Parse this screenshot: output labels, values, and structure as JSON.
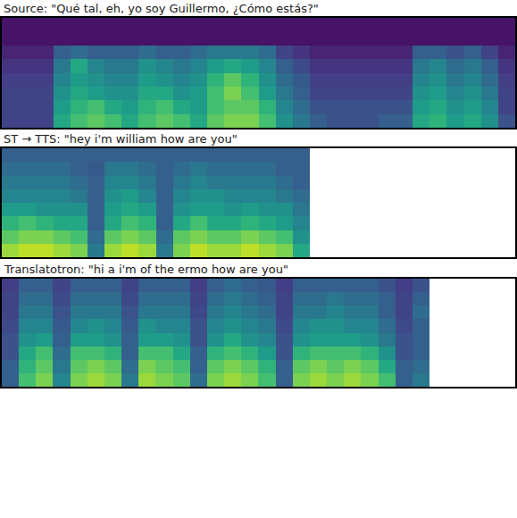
{
  "chart_data": [
    {
      "type": "heatmap",
      "title": "Source: \"Qué tal, eh, yo soy Guillermo, ¿Cómo estás?\"",
      "color": "viridis",
      "tick_labels": false,
      "xlim": [
        0,
        30
      ],
      "ylim": [
        0,
        8
      ],
      "zlim": [
        0,
        1
      ],
      "z": [
        [
          0.2,
          0.2,
          0.2,
          0.6,
          0.7,
          0.75,
          0.7,
          0.6,
          0.7,
          0.75,
          0.7,
          0.6,
          0.75,
          0.8,
          0.8,
          0.7,
          0.5,
          0.4,
          0.3,
          0.25,
          0.25,
          0.25,
          0.3,
          0.3,
          0.6,
          0.65,
          0.55,
          0.6,
          0.5,
          0.25
        ],
        [
          0.2,
          0.2,
          0.2,
          0.55,
          0.65,
          0.7,
          0.6,
          0.55,
          0.65,
          0.7,
          0.6,
          0.55,
          0.7,
          0.75,
          0.75,
          0.65,
          0.45,
          0.35,
          0.25,
          0.25,
          0.25,
          0.25,
          0.25,
          0.25,
          0.55,
          0.6,
          0.5,
          0.55,
          0.45,
          0.2
        ],
        [
          0.2,
          0.2,
          0.2,
          0.5,
          0.6,
          0.55,
          0.5,
          0.5,
          0.6,
          0.6,
          0.5,
          0.55,
          0.7,
          0.8,
          0.7,
          0.55,
          0.4,
          0.3,
          0.2,
          0.2,
          0.2,
          0.2,
          0.2,
          0.2,
          0.5,
          0.55,
          0.45,
          0.5,
          0.4,
          0.2
        ],
        [
          0.18,
          0.18,
          0.18,
          0.45,
          0.55,
          0.5,
          0.45,
          0.45,
          0.55,
          0.5,
          0.45,
          0.5,
          0.65,
          0.75,
          0.65,
          0.5,
          0.35,
          0.28,
          0.18,
          0.18,
          0.18,
          0.18,
          0.18,
          0.18,
          0.45,
          0.5,
          0.4,
          0.45,
          0.35,
          0.18
        ],
        [
          0.15,
          0.15,
          0.15,
          0.4,
          0.6,
          0.45,
          0.4,
          0.4,
          0.5,
          0.45,
          0.4,
          0.45,
          0.55,
          0.6,
          0.55,
          0.45,
          0.3,
          0.22,
          0.15,
          0.15,
          0.15,
          0.15,
          0.15,
          0.15,
          0.4,
          0.45,
          0.35,
          0.4,
          0.3,
          0.15
        ],
        [
          0.1,
          0.1,
          0.1,
          0.3,
          0.35,
          0.3,
          0.3,
          0.3,
          0.35,
          0.3,
          0.3,
          0.35,
          0.4,
          0.4,
          0.4,
          0.35,
          0.2,
          0.15,
          0.1,
          0.1,
          0.1,
          0.1,
          0.1,
          0.1,
          0.3,
          0.3,
          0.25,
          0.3,
          0.2,
          0.1
        ],
        [
          0.05,
          0.05,
          0.05,
          0.05,
          0.05,
          0.05,
          0.05,
          0.05,
          0.05,
          0.05,
          0.05,
          0.05,
          0.05,
          0.05,
          0.05,
          0.05,
          0.05,
          0.05,
          0.05,
          0.05,
          0.05,
          0.05,
          0.05,
          0.05,
          0.05,
          0.05,
          0.05,
          0.05,
          0.05,
          0.05
        ],
        [
          0.05,
          0.05,
          0.05,
          0.05,
          0.05,
          0.05,
          0.05,
          0.05,
          0.05,
          0.05,
          0.05,
          0.05,
          0.05,
          0.05,
          0.05,
          0.05,
          0.05,
          0.05,
          0.05,
          0.05,
          0.05,
          0.05,
          0.05,
          0.05,
          0.05,
          0.05,
          0.05,
          0.05,
          0.05,
          0.05
        ]
      ]
    },
    {
      "type": "heatmap",
      "title": "ST → TTS: \"hey i'm william how are you\"",
      "color": "viridis",
      "tick_labels": false,
      "xlim": [
        0,
        30
      ],
      "ylim": [
        0,
        8
      ],
      "zlim": [
        0,
        1
      ],
      "z": [
        [
          0.85,
          0.9,
          0.9,
          0.85,
          0.8,
          0.4,
          0.85,
          0.9,
          0.85,
          0.4,
          0.8,
          0.9,
          0.85,
          0.85,
          0.9,
          0.85,
          0.8,
          0.6
        ],
        [
          0.75,
          0.8,
          0.8,
          0.75,
          0.7,
          0.35,
          0.75,
          0.8,
          0.75,
          0.35,
          0.75,
          0.8,
          0.75,
          0.75,
          0.8,
          0.75,
          0.7,
          0.5
        ],
        [
          0.65,
          0.7,
          0.65,
          0.6,
          0.6,
          0.3,
          0.6,
          0.7,
          0.65,
          0.3,
          0.6,
          0.7,
          0.6,
          0.6,
          0.65,
          0.6,
          0.55,
          0.45
        ],
        [
          0.55,
          0.55,
          0.5,
          0.5,
          0.5,
          0.3,
          0.55,
          0.6,
          0.55,
          0.3,
          0.5,
          0.55,
          0.55,
          0.5,
          0.55,
          0.5,
          0.5,
          0.4
        ],
        [
          0.45,
          0.45,
          0.45,
          0.45,
          0.4,
          0.3,
          0.5,
          0.55,
          0.45,
          0.3,
          0.45,
          0.5,
          0.5,
          0.45,
          0.45,
          0.45,
          0.4,
          0.35
        ],
        [
          0.4,
          0.4,
          0.4,
          0.4,
          0.35,
          0.3,
          0.45,
          0.45,
          0.4,
          0.3,
          0.4,
          0.45,
          0.4,
          0.4,
          0.4,
          0.4,
          0.35,
          0.3
        ],
        [
          0.35,
          0.35,
          0.35,
          0.35,
          0.3,
          0.28,
          0.4,
          0.4,
          0.35,
          0.3,
          0.35,
          0.4,
          0.35,
          0.35,
          0.35,
          0.35,
          0.3,
          0.3
        ],
        [
          0.3,
          0.3,
          0.3,
          0.3,
          0.3,
          0.3,
          0.3,
          0.3,
          0.3,
          0.3,
          0.3,
          0.3,
          0.3,
          0.3,
          0.3,
          0.3,
          0.3,
          0.3
        ]
      ]
    },
    {
      "type": "heatmap",
      "title": "Translatotron: \"hi a i'm of the ermo how are you\"",
      "color": "viridis",
      "tick_labels": false,
      "xlim": [
        0,
        30
      ],
      "ylim": [
        0,
        8
      ],
      "zlim": [
        0,
        1
      ],
      "z": [
        [
          0.3,
          0.7,
          0.8,
          0.45,
          0.8,
          0.85,
          0.8,
          0.4,
          0.85,
          0.8,
          0.75,
          0.35,
          0.8,
          0.85,
          0.8,
          0.7,
          0.3,
          0.8,
          0.85,
          0.8,
          0.85,
          0.8,
          0.7,
          0.3,
          0.4
        ],
        [
          0.3,
          0.65,
          0.75,
          0.4,
          0.75,
          0.8,
          0.75,
          0.35,
          0.8,
          0.75,
          0.7,
          0.3,
          0.75,
          0.8,
          0.75,
          0.65,
          0.3,
          0.75,
          0.8,
          0.75,
          0.8,
          0.75,
          0.6,
          0.3,
          0.35
        ],
        [
          0.25,
          0.6,
          0.7,
          0.35,
          0.7,
          0.7,
          0.65,
          0.3,
          0.7,
          0.7,
          0.6,
          0.3,
          0.65,
          0.7,
          0.65,
          0.55,
          0.25,
          0.65,
          0.7,
          0.7,
          0.7,
          0.65,
          0.5,
          0.25,
          0.3
        ],
        [
          0.25,
          0.5,
          0.55,
          0.3,
          0.55,
          0.55,
          0.5,
          0.3,
          0.55,
          0.55,
          0.5,
          0.25,
          0.5,
          0.6,
          0.5,
          0.45,
          0.25,
          0.5,
          0.55,
          0.55,
          0.55,
          0.5,
          0.4,
          0.25,
          0.3
        ],
        [
          0.22,
          0.45,
          0.45,
          0.28,
          0.45,
          0.5,
          0.45,
          0.28,
          0.5,
          0.45,
          0.45,
          0.25,
          0.45,
          0.5,
          0.45,
          0.4,
          0.22,
          0.45,
          0.5,
          0.5,
          0.45,
          0.45,
          0.35,
          0.22,
          0.3
        ],
        [
          0.2,
          0.4,
          0.4,
          0.25,
          0.4,
          0.4,
          0.4,
          0.25,
          0.4,
          0.4,
          0.4,
          0.22,
          0.4,
          0.45,
          0.4,
          0.35,
          0.2,
          0.4,
          0.4,
          0.45,
          0.4,
          0.4,
          0.3,
          0.2,
          0.35
        ],
        [
          0.2,
          0.35,
          0.35,
          0.22,
          0.35,
          0.35,
          0.35,
          0.22,
          0.35,
          0.35,
          0.35,
          0.2,
          0.35,
          0.4,
          0.35,
          0.3,
          0.2,
          0.35,
          0.35,
          0.4,
          0.35,
          0.35,
          0.3,
          0.2,
          0.3
        ],
        [
          0.18,
          0.3,
          0.3,
          0.2,
          0.3,
          0.3,
          0.3,
          0.2,
          0.3,
          0.3,
          0.3,
          0.18,
          0.3,
          0.35,
          0.3,
          0.28,
          0.18,
          0.3,
          0.3,
          0.3,
          0.3,
          0.3,
          0.25,
          0.18,
          0.25
        ]
      ]
    }
  ]
}
